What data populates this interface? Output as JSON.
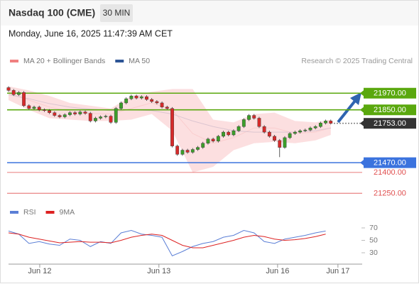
{
  "header": {
    "title": "Nasdaq 100 (CME)",
    "interval": "30 MIN",
    "timestamp": "Monday, June 16, 2025 11:47:39 AM CET"
  },
  "chart_data": [
    {
      "type": "candlestick",
      "credit": "Research © 2025 Trading Central",
      "up_color": "#3c9e2a",
      "down_color": "#d62a2a",
      "xlim": [
        0,
        69
      ],
      "ylim": [
        21200,
        22150
      ],
      "open": [
        22010,
        21990,
        21960,
        21975,
        21880,
        21860,
        21870,
        21850,
        21845,
        21830,
        21810,
        21800,
        21815,
        21830,
        21820,
        21835,
        21825,
        21770,
        21790,
        21800,
        21805,
        21760,
        21860,
        21900,
        21930,
        21950,
        21935,
        21945,
        21925,
        21910,
        21900,
        21870,
        21860,
        21590,
        21530,
        21560,
        21545,
        21565,
        21580,
        21610,
        21640,
        21625,
        21660,
        21690,
        21670,
        21700,
        21730,
        21780,
        21810,
        21790,
        21730,
        21690,
        21660,
        21630,
        21580,
        21650,
        21680,
        21690,
        21700,
        21705,
        21720,
        21730,
        21755,
        21770
      ],
      "high": [
        22020,
        22000,
        21985,
        21985,
        21890,
        21880,
        21880,
        21860,
        21855,
        21840,
        21820,
        21825,
        21840,
        21840,
        21845,
        21845,
        21835,
        21800,
        21810,
        21815,
        21815,
        21870,
        21910,
        21940,
        21960,
        21960,
        21955,
        21955,
        21935,
        21920,
        21910,
        21880,
        21870,
        21600,
        21570,
        21570,
        21575,
        21590,
        21620,
        21650,
        21650,
        21670,
        21700,
        21700,
        21710,
        21740,
        21790,
        21820,
        21820,
        21800,
        21740,
        21700,
        21670,
        21640,
        21660,
        21690,
        21700,
        21710,
        21715,
        21730,
        21740,
        21765,
        21780,
        21780
      ],
      "low": [
        21980,
        21950,
        21950,
        21870,
        21850,
        21850,
        21840,
        21835,
        21820,
        21800,
        21790,
        21790,
        21805,
        21810,
        21810,
        21815,
        21760,
        21760,
        21780,
        21790,
        21750,
        21750,
        21850,
        21890,
        21920,
        21925,
        21925,
        21915,
        21900,
        21890,
        21860,
        21850,
        21580,
        21520,
        21520,
        21535,
        21535,
        21555,
        21570,
        21600,
        21615,
        21615,
        21650,
        21660,
        21660,
        21690,
        21720,
        21770,
        21780,
        21720,
        21680,
        21650,
        21620,
        21510,
        21570,
        21640,
        21670,
        21680,
        21690,
        21695,
        21710,
        21720,
        21745,
        21745
      ],
      "close": [
        21990,
        21960,
        21975,
        21880,
        21860,
        21870,
        21850,
        21845,
        21830,
        21810,
        21800,
        21815,
        21830,
        21820,
        21835,
        21825,
        21770,
        21790,
        21800,
        21805,
        21760,
        21860,
        21900,
        21930,
        21950,
        21935,
        21945,
        21925,
        21910,
        21900,
        21870,
        21860,
        21590,
        21530,
        21560,
        21545,
        21565,
        21580,
        21610,
        21640,
        21625,
        21660,
        21690,
        21670,
        21700,
        21730,
        21780,
        21810,
        21790,
        21730,
        21690,
        21660,
        21630,
        21580,
        21650,
        21680,
        21690,
        21700,
        21705,
        21720,
        21730,
        21755,
        21770,
        21753
      ],
      "overlay_x": [
        0,
        4,
        8,
        12,
        16,
        20,
        24,
        28,
        32,
        36,
        40,
        44,
        48,
        52,
        56,
        60,
        63
      ],
      "bands": {
        "color": "#fbd9da",
        "upper": [
          22020,
          21990,
          21950,
          21900,
          21880,
          21860,
          21950,
          21980,
          22000,
          22000,
          21780,
          21760,
          21820,
          21830,
          21770,
          21760,
          21780
        ],
        "lower": [
          21920,
          21850,
          21790,
          21780,
          21770,
          21770,
          21780,
          21820,
          21700,
          21400,
          21440,
          21560,
          21610,
          21620,
          21610,
          21630,
          21670
        ]
      },
      "series": [
        {
          "name": "MA 20 + Bollinger Bands",
          "color": "#f08080",
          "values": [
            21970,
            21920,
            21870,
            21840,
            21825,
            21820,
            21860,
            21900,
            21850,
            21680,
            21610,
            21650,
            21720,
            21720,
            21680,
            21690,
            21720
          ]
        },
        {
          "name": "MA 50",
          "color": "#2d5596",
          "values": [
            21960,
            21930,
            21895,
            21870,
            21855,
            21845,
            21850,
            21845,
            21820,
            21770,
            21730,
            21700,
            21690,
            21690,
            21690,
            21700,
            21720
          ]
        }
      ],
      "levels": [
        {
          "value": 21970,
          "label": "21970.00",
          "color": "#5aa80e",
          "style": "filled"
        },
        {
          "value": 21850,
          "label": "21850.00",
          "color": "#5aa80e",
          "style": "filled"
        },
        {
          "value": 21753,
          "label": "21753.00",
          "color": "#333333",
          "style": "current"
        },
        {
          "value": 21470,
          "label": "21470.00",
          "color": "#3b73de",
          "style": "filled"
        },
        {
          "value": 21400,
          "label": "21400.00",
          "color": "#e05050",
          "style": "text"
        },
        {
          "value": 21250,
          "label": "21250.00",
          "color": "#e05050",
          "style": "text"
        }
      ]
    },
    {
      "type": "line",
      "xlim": [
        0,
        69
      ],
      "ylim": [
        10,
        90
      ],
      "yticks": [
        30,
        50,
        70
      ],
      "grid": false,
      "x": [
        0,
        2,
        4,
        6,
        8,
        10,
        12,
        14,
        16,
        18,
        20,
        22,
        24,
        26,
        28,
        30,
        32,
        34,
        36,
        38,
        40,
        42,
        44,
        46,
        48,
        50,
        52,
        54,
        56,
        58,
        60,
        62
      ],
      "xticks": [
        {
          "value": 6.1,
          "label": "Jun 12"
        },
        {
          "value": 29.4,
          "label": "Jun 13"
        },
        {
          "value": 52.6,
          "label": "Jun 16"
        },
        {
          "value": 64.4,
          "label": "Jun 17"
        }
      ],
      "series": [
        {
          "name": "RSI",
          "color": "#5b7fd6",
          "values": [
            65,
            60,
            45,
            48,
            44,
            42,
            52,
            50,
            40,
            48,
            45,
            62,
            66,
            60,
            58,
            55,
            25,
            32,
            40,
            45,
            48,
            55,
            58,
            66,
            62,
            48,
            45,
            52,
            55,
            58,
            62,
            65
          ]
        },
        {
          "name": "9MA",
          "color": "#dd2222",
          "values": [
            62,
            60,
            55,
            52,
            49,
            46,
            47,
            48,
            47,
            47,
            46,
            50,
            55,
            58,
            60,
            58,
            50,
            42,
            38,
            38,
            42,
            46,
            50,
            55,
            58,
            56,
            52,
            50,
            51,
            53,
            56,
            60
          ]
        }
      ]
    }
  ]
}
